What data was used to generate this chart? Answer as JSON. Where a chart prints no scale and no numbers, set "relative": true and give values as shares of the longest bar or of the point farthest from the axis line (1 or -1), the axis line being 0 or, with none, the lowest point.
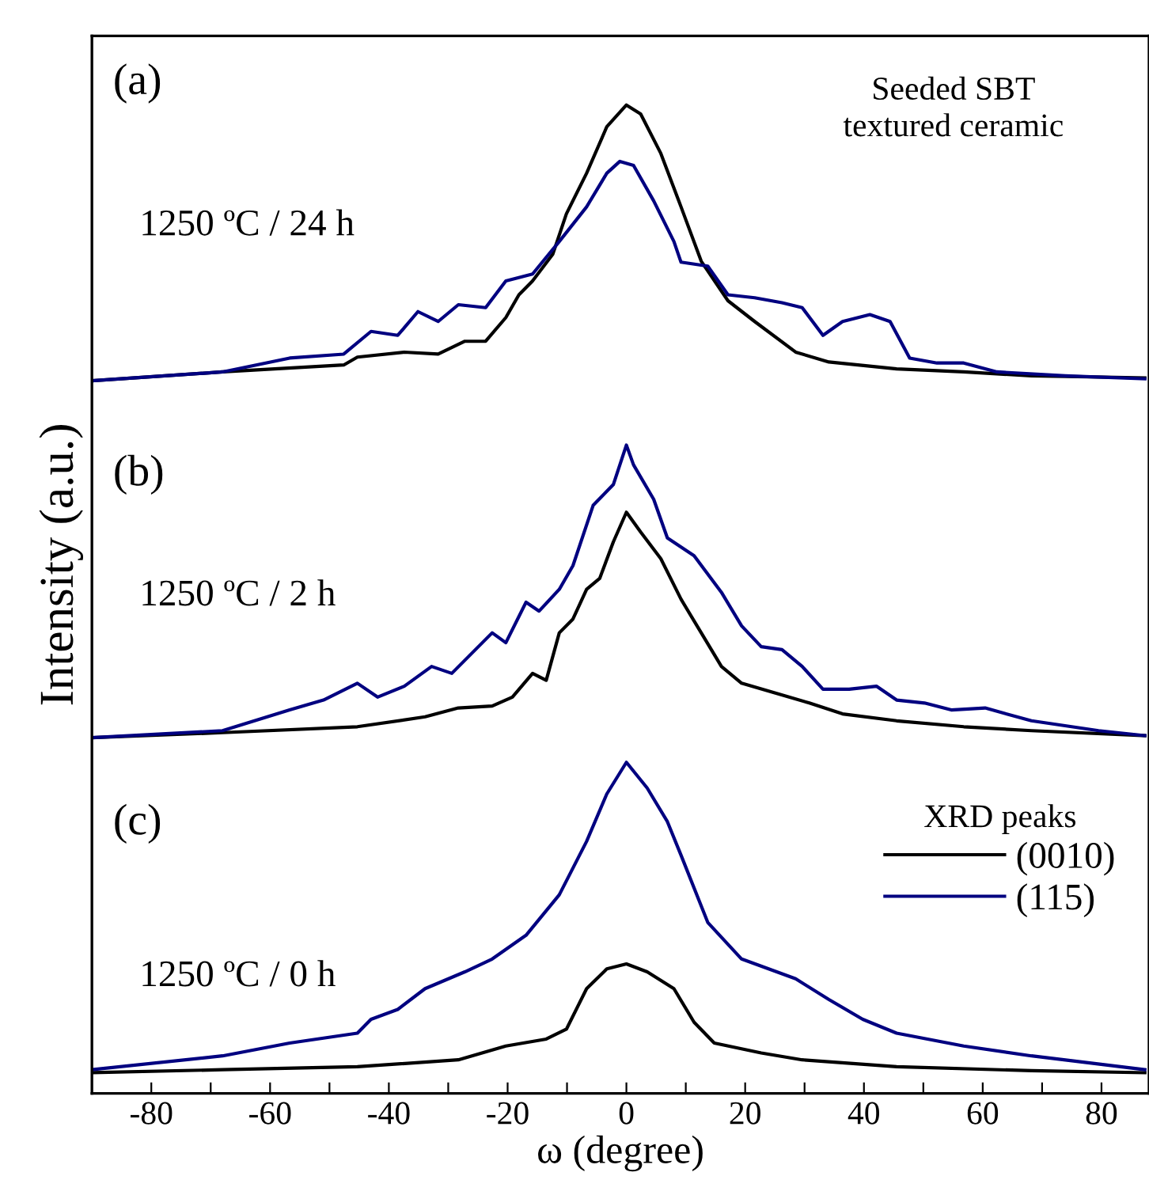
{
  "chart_data": {
    "type": "line",
    "relative": true,
    "xlabel": "ω (degree)",
    "ylabel": "Intensity (a.u.)",
    "legend_title": "XRD peaks",
    "xlim": [
      -90,
      88
    ],
    "xticks": [
      -80,
      {
        "value": -70,
        "label": null
      },
      -60,
      {
        "value": -50,
        "label": null
      },
      -40,
      {
        "value": -30,
        "label": null
      },
      -20,
      {
        "value": -10,
        "label": null
      },
      0,
      {
        "value": 10,
        "label": null
      },
      20,
      {
        "value": 30,
        "label": null
      },
      40,
      {
        "value": 50,
        "label": null
      },
      60,
      {
        "value": 70,
        "label": null
      },
      80
    ],
    "tick_labels": "x",
    "grid": false,
    "legend": "right",
    "marker": "none",
    "line_style": "solid",
    "annotations": [
      "(a)",
      "Seeded SBT\ntextured ceramic",
      "1250 ºC / 24 h",
      "(b)",
      "1250 ºC / 2 h",
      "(c)",
      "1250 ºC / 0 h"
    ],
    "series": [
      {
        "color": "#000000",
        "x": [
          -90,
          -68,
          -47.6,
          -45.3,
          -37.4,
          -31.7,
          -27.2,
          -23.7,
          -20.3,
          -18.1,
          -15.8,
          -12.4,
          -10.1,
          -6.7,
          -3.3,
          0,
          2.4,
          5.8,
          9.2,
          12.6,
          17.1,
          21.6,
          28.5,
          34.1,
          45.5,
          56.8,
          68.2,
          87.3
        ],
        "values": [
          0.721,
          0.73,
          0.737,
          0.745,
          0.75,
          0.748,
          0.761,
          0.761,
          0.785,
          0.808,
          0.822,
          0.849,
          0.89,
          0.931,
          0.978,
          1.0,
          0.991,
          0.951,
          0.897,
          0.842,
          0.802,
          0.781,
          0.75,
          0.74,
          0.733,
          0.73,
          0.726,
          0.724
        ]
      },
      {
        "color": "#000080",
        "x": [
          -90,
          -68,
          -56.7,
          -47.6,
          -43,
          -38.5,
          -35.1,
          -31.7,
          -28.3,
          -23.7,
          -20.3,
          -15.8,
          -11.3,
          -6.7,
          -3.3,
          -1.1,
          1.2,
          4.6,
          8,
          9.2,
          13.7,
          17.1,
          21.6,
          26.2,
          29.6,
          33.1,
          36.4,
          41,
          44.4,
          47.7,
          52.3,
          56.8,
          62.4,
          73.9,
          87.3
        ],
        "values": [
          0.721,
          0.73,
          0.744,
          0.748,
          0.771,
          0.767,
          0.791,
          0.781,
          0.798,
          0.795,
          0.822,
          0.829,
          0.862,
          0.897,
          0.931,
          0.943,
          0.939,
          0.903,
          0.862,
          0.841,
          0.837,
          0.808,
          0.805,
          0.8,
          0.795,
          0.767,
          0.781,
          0.788,
          0.781,
          0.744,
          0.739,
          0.739,
          0.73,
          0.726,
          0.723
        ]
      },
      {
        "color": "#000000",
        "x": [
          -90,
          -68,
          -45.3,
          -33.9,
          -28.3,
          -22.6,
          -19.2,
          -15.8,
          -13.5,
          -11.3,
          -9,
          -6.7,
          -4.5,
          -2.2,
          0,
          2.4,
          5.8,
          9.2,
          12.6,
          16,
          19.4,
          25.1,
          30.8,
          36.4,
          45.5,
          56.8,
          68.2,
          87.3
        ],
        "values": [
          0.36,
          0.365,
          0.371,
          0.381,
          0.39,
          0.392,
          0.401,
          0.425,
          0.418,
          0.466,
          0.48,
          0.51,
          0.521,
          0.558,
          0.588,
          0.568,
          0.541,
          0.5,
          0.466,
          0.432,
          0.415,
          0.405,
          0.395,
          0.384,
          0.377,
          0.371,
          0.367,
          0.362
        ]
      },
      {
        "color": "#000080",
        "x": [
          -90,
          -68,
          -56.7,
          -51,
          -45.3,
          -41.9,
          -37.4,
          -32.8,
          -29.4,
          -22.6,
          -20.3,
          -16.9,
          -14.7,
          -11.3,
          -9,
          -5.6,
          -2.2,
          0,
          1.2,
          4.6,
          6.9,
          11.4,
          16,
          19.4,
          22.7,
          26.2,
          29.6,
          33.1,
          37.5,
          42.1,
          45.5,
          50.2,
          54.7,
          60.4,
          68.2,
          79.5,
          87.3
        ],
        "values": [
          0.36,
          0.367,
          0.388,
          0.398,
          0.415,
          0.401,
          0.412,
          0.432,
          0.425,
          0.466,
          0.456,
          0.497,
          0.488,
          0.51,
          0.534,
          0.595,
          0.616,
          0.656,
          0.636,
          0.601,
          0.562,
          0.544,
          0.507,
          0.473,
          0.452,
          0.449,
          0.432,
          0.409,
          0.409,
          0.412,
          0.398,
          0.395,
          0.388,
          0.39,
          0.377,
          0.367,
          0.362
        ]
      },
      {
        "name": "(0010)",
        "color": "#000000",
        "x": [
          -90,
          -68,
          -45.3,
          -28.3,
          -20.3,
          -13.5,
          -10.1,
          -6.7,
          -3.3,
          0,
          3.5,
          8,
          11.4,
          14.8,
          22.7,
          29.6,
          45.5,
          68.2,
          87.3
        ],
        "values": [
          0.021,
          0.024,
          0.027,
          0.034,
          0.048,
          0.055,
          0.065,
          0.106,
          0.126,
          0.131,
          0.123,
          0.106,
          0.072,
          0.051,
          0.041,
          0.034,
          0.027,
          0.023,
          0.021
        ]
      },
      {
        "name": "(115)",
        "color": "#000080",
        "x": [
          -90,
          -68,
          -56.7,
          -45.3,
          -43,
          -38.5,
          -33.9,
          -27.2,
          -22.6,
          -16.9,
          -11.3,
          -6.7,
          -3.3,
          0,
          3.5,
          6.9,
          9.2,
          13.7,
          19.4,
          28.5,
          34.1,
          39.8,
          45.5,
          56.8,
          68.2,
          87.3
        ],
        "values": [
          0.024,
          0.038,
          0.051,
          0.061,
          0.075,
          0.085,
          0.106,
          0.123,
          0.136,
          0.16,
          0.201,
          0.255,
          0.303,
          0.335,
          0.309,
          0.275,
          0.241,
          0.173,
          0.136,
          0.116,
          0.095,
          0.075,
          0.061,
          0.048,
          0.038,
          0.024
        ]
      }
    ]
  }
}
